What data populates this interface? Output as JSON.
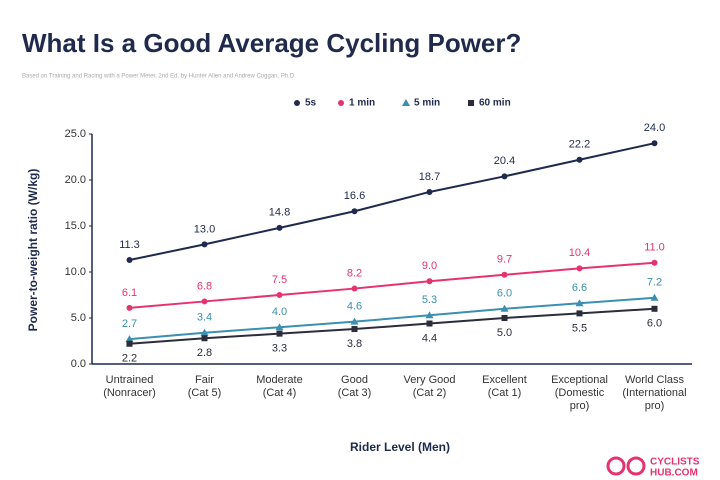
{
  "title": "What Is a Good Average Cycling Power?",
  "subtitle": "Based on Training and Racing with a Power Meter, 2nd Ed. by Hunter Allen and Andrew Coggan, Ph.D.",
  "logo": [
    "CYCLISTS",
    "HUB.COM"
  ],
  "chart_data": {
    "type": "line",
    "x_label": "Rider Level (Men)",
    "y_label": "Power-to-weight ratio (W/kg)",
    "categories": [
      [
        "Untrained",
        "(Nonracer)"
      ],
      [
        "Fair",
        "(Cat 5)"
      ],
      [
        "Moderate",
        "(Cat 4)"
      ],
      [
        "Good",
        "(Cat 3)"
      ],
      [
        "Very Good",
        "(Cat 2)"
      ],
      [
        "Excellent",
        "(Cat 1)"
      ],
      [
        "Exceptional",
        "(Domestic",
        "pro)"
      ],
      [
        "World Class",
        "(International",
        "pro)"
      ]
    ],
    "series": [
      {
        "name": "5s",
        "color": "#1f2a4d",
        "marker": "circle",
        "values": [
          11.3,
          13.0,
          14.8,
          16.6,
          18.7,
          20.4,
          22.2,
          24.0
        ],
        "value_labels": [
          "11.3",
          "13.0",
          "14.8",
          "16.6",
          "18.7",
          "20.4",
          "22.2",
          "24.0"
        ]
      },
      {
        "name": "1 min",
        "color": "#e6336f",
        "marker": "circle",
        "values": [
          6.1,
          6.8,
          7.5,
          8.2,
          9.0,
          9.7,
          10.4,
          11.0
        ],
        "value_labels": [
          "6.1",
          "6.8",
          "7.5",
          "8.2",
          "9.0",
          "9.7",
          "10.4",
          "11.0"
        ]
      },
      {
        "name": "5 min",
        "color": "#3b8fb0",
        "marker": "triangle",
        "values": [
          2.7,
          3.4,
          4.0,
          4.6,
          5.3,
          6.0,
          6.6,
          7.2
        ],
        "value_labels": [
          "2.7",
          "3.4",
          "4.0",
          "4.6",
          "5.3",
          "6.0",
          "6.6",
          "7.2"
        ]
      },
      {
        "name": "60 min",
        "color": "#2b2d3a",
        "marker": "square",
        "values": [
          2.2,
          2.8,
          3.3,
          3.8,
          4.4,
          5.0,
          5.5,
          6.0
        ],
        "value_labels": [
          "2.2",
          "2.8",
          "3.3",
          "3.8",
          "4.4",
          "5.0",
          "5.5",
          "6.0"
        ]
      }
    ],
    "ylim": [
      0,
      25
    ],
    "yticks": [
      {
        "value": 0,
        "label": "0.0"
      },
      {
        "value": 5,
        "label": "5.0"
      },
      {
        "value": 10,
        "label": "10.0"
      },
      {
        "value": 15,
        "label": "15.0"
      },
      {
        "value": 20,
        "label": "20.0"
      },
      {
        "value": 25,
        "label": "25.0"
      }
    ],
    "grid": false,
    "legend_position": "top"
  }
}
